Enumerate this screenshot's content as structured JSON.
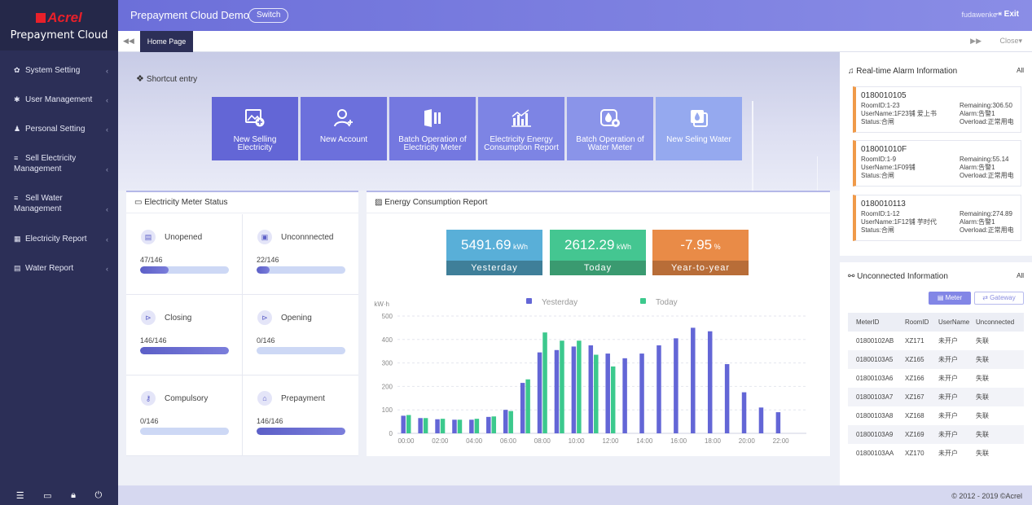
{
  "brand": {
    "logo": "Acrel",
    "product": "Prepayment Cloud"
  },
  "sidebar": {
    "items": [
      {
        "label": "System Setting",
        "icon": "gear-icon"
      },
      {
        "label": "User Management",
        "icon": "star-icon"
      },
      {
        "label": "Personal Setting",
        "icon": "person-icon"
      },
      {
        "label": "Sell Electricity Management",
        "icon": "list-icon"
      },
      {
        "label": "Sell Water Management",
        "icon": "list-icon"
      },
      {
        "label": "Electricity Report",
        "icon": "grid-icon"
      },
      {
        "label": "Water Report",
        "icon": "card-icon"
      }
    ],
    "bottom_icons": [
      "menu-icon",
      "monitor-icon",
      "lock-icon",
      "power-icon"
    ]
  },
  "header": {
    "title": "Prepayment Cloud Demo",
    "switch_label": "Switch",
    "username": "fudawenke",
    "exit_label": "Exit"
  },
  "tabs": {
    "home": "Home Page",
    "close": "Close"
  },
  "shortcut": {
    "title": "Shortcut entry",
    "items": [
      {
        "label1": "New Selling",
        "label2": "Electricity",
        "color": "#6366d6"
      },
      {
        "label1": "New Account",
        "label2": "",
        "color": "#6c70dc"
      },
      {
        "label1": "Batch Operation of",
        "label2": "Electricity Meter",
        "color": "#7478e0"
      },
      {
        "label1": "Electricity Energy",
        "label2": "Consumption Report",
        "color": "#7d84e4"
      },
      {
        "label1": "Batch Operation of",
        "label2": "Water Meter",
        "color": "#8a94e9"
      },
      {
        "label1": "New Seling Water",
        "label2": "",
        "color": "#95a9ef"
      }
    ]
  },
  "meter_status": {
    "title": "Electricity Meter Status",
    "cells": [
      {
        "label": "Unopened",
        "count": "47/146",
        "fraction": 0.322
      },
      {
        "label": "Unconnnected",
        "count": "22/146",
        "fraction": 0.151
      },
      {
        "label": "Closing",
        "count": "146/146",
        "fraction": 1.0
      },
      {
        "label": "Opening",
        "count": "0/146",
        "fraction": 0
      },
      {
        "label": "Compulsory",
        "count": "0/146",
        "fraction": 0
      },
      {
        "label": "Prepayment",
        "count": "146/146",
        "fraction": 1.0
      }
    ]
  },
  "energy_report": {
    "title": "Energy Consumption Report",
    "kpis": [
      {
        "value": "5491.69",
        "unit": "kWh",
        "label": "Yesterday",
        "top": "#59afd8",
        "bottom": "#3f7f99"
      },
      {
        "value": "2612.29",
        "unit": "kWh",
        "label": "Today",
        "top": "#44c691",
        "bottom": "#3a9a70"
      },
      {
        "value": "-7.95",
        "unit": "%",
        "label": "Year-to-year",
        "top": "#e98b47",
        "bottom": "#b86d38"
      }
    ]
  },
  "chart_data": {
    "type": "bar",
    "ylabel": "kW·h",
    "ylim": [
      0,
      500
    ],
    "yticks": [
      0,
      100,
      200,
      300,
      400,
      500
    ],
    "xticks": [
      "00:00",
      "02:00",
      "04:00",
      "06:00",
      "08:00",
      "10:00",
      "12:00",
      "14:00",
      "16:00",
      "18:00",
      "20:00",
      "22:00"
    ],
    "categories": [
      "00",
      "01",
      "02",
      "03",
      "04",
      "05",
      "06",
      "07",
      "08",
      "09",
      "10",
      "11",
      "12",
      "13",
      "14",
      "15",
      "16",
      "17",
      "18",
      "19",
      "20",
      "21",
      "22",
      "23"
    ],
    "series": [
      {
        "name": "Yesterday",
        "color": "#6366d6",
        "values": [
          75,
          65,
          60,
          58,
          58,
          70,
          100,
          215,
          345,
          355,
          370,
          375,
          340,
          320,
          340,
          375,
          405,
          450,
          435,
          295,
          175,
          110,
          90,
          0
        ]
      },
      {
        "name": "Today",
        "color": "#3cc98d",
        "values": [
          78,
          65,
          62,
          58,
          62,
          72,
          95,
          230,
          430,
          395,
          395,
          335,
          285,
          null,
          null,
          null,
          null,
          null,
          null,
          null,
          null,
          null,
          null,
          null
        ]
      }
    ],
    "legend": "top",
    "grid": true
  },
  "alarm": {
    "title": "Real-time Alarm Information",
    "all": "All",
    "items": [
      {
        "id": "0180010105",
        "room": "RoomID:1-23",
        "remaining": "Remaining:306.50",
        "user": "UserName:1F23铺 爱上书",
        "alarm": "Alarm:告警1",
        "status": "Status:合闸",
        "overload": "Overload:正常用电"
      },
      {
        "id": "018001010F",
        "room": "RoomID:1-9",
        "remaining": "Remaining:55.14",
        "user": "UserName:1F09铺",
        "alarm": "Alarm:告警1",
        "status": "Status:合闸",
        "overload": "Overload:正常用电"
      },
      {
        "id": "0180010113",
        "room": "RoomID:1-12",
        "remaining": "Remaining:274.89",
        "user": "UserName:1F12铺 芋时代",
        "alarm": "Alarm:告警1",
        "status": "Status:合闸",
        "overload": "Overload:正常用电"
      }
    ]
  },
  "unconnected": {
    "title": "Unconnected Information",
    "all": "All",
    "meter_btn": "Meter",
    "gateway_btn": "Gateway",
    "columns": [
      "MeterID",
      "RoomID",
      "UserName",
      "Unconnected"
    ],
    "rows": [
      [
        "01800102AB",
        "XZ171",
        "未开户",
        "失联"
      ],
      [
        "01800103A5",
        "XZ165",
        "未开户",
        "失联"
      ],
      [
        "01800103A6",
        "XZ166",
        "未开户",
        "失联"
      ],
      [
        "01800103A7",
        "XZ167",
        "未开户",
        "失联"
      ],
      [
        "01800103A8",
        "XZ168",
        "未开户",
        "失联"
      ],
      [
        "01800103A9",
        "XZ169",
        "未开户",
        "失联"
      ],
      [
        "01800103AA",
        "XZ170",
        "未开户",
        "失联"
      ]
    ]
  },
  "footer": {
    "copyright": "© 2012 - 2019 ©Acrel"
  }
}
